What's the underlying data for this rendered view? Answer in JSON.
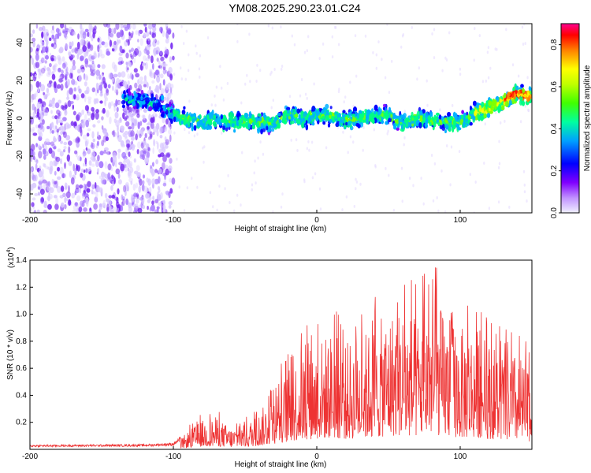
{
  "title": "YM08.2025.290.23.01.C24",
  "chart_data": [
    {
      "type": "heatmap",
      "name": "spectrogram",
      "xlabel": "Height of straight line (km)",
      "ylabel": "Frequency (Hz)",
      "xlim": [
        -200,
        150
      ],
      "ylim": [
        -50,
        50
      ],
      "xticks": [
        "-200",
        "-100",
        "0",
        "100"
      ],
      "yticks": [
        "40",
        "20",
        "0",
        "-20",
        "-40"
      ],
      "colorbar": {
        "label": "Normalized spectral amplitude",
        "range": [
          0,
          0.9
        ],
        "ticks": [
          "0.0",
          "0.2",
          "0.4",
          "0.6",
          "0.8"
        ],
        "colors": [
          "#f0f0ff",
          "#8000ff",
          "#0000ff",
          "#00b0ff",
          "#00ff80",
          "#80ff00",
          "#ffff00",
          "#ff8000",
          "#ff0000",
          "#ff0080"
        ]
      },
      "ridge": {
        "x": [
          -130,
          -120,
          -110,
          -100,
          -90,
          -80,
          -70,
          -60,
          -50,
          -40,
          -30,
          -20,
          -10,
          0,
          10,
          20,
          30,
          40,
          50,
          60,
          70,
          80,
          90,
          100,
          110,
          120,
          130,
          140,
          150
        ],
        "y": [
          10,
          9,
          7,
          2,
          -1,
          -2,
          -1,
          -2,
          -1,
          -2,
          -3,
          2,
          0,
          2,
          1,
          -1,
          0,
          1,
          2,
          -3,
          0,
          -1,
          -2,
          -3,
          3,
          5,
          9,
          13,
          11
        ],
        "spread_hz": 6
      },
      "noise_region_x": [
        -200,
        -100
      ]
    },
    {
      "type": "line",
      "name": "snr",
      "xlabel": "Height of straight line (km)",
      "ylabel": "SNR (10 * v/v)",
      "y_multiplier": "(x10",
      "y_multiplier_exp": "4",
      "y_multiplier_close": ")",
      "xlim": [
        -200,
        150
      ],
      "ylim": [
        0,
        14000
      ],
      "xticks": [
        "-200",
        "-100",
        "0",
        "100"
      ],
      "yticks": [
        "0.2",
        "0.4",
        "0.6",
        "0.8",
        "1.0",
        "1.2",
        "1.4"
      ],
      "series": [
        {
          "name": "SNR",
          "color": "#ee3333",
          "envelope_x": [
            -200,
            -120,
            -100,
            -95,
            -90,
            -80,
            -70,
            -60,
            -50,
            -40,
            -30,
            -20,
            -10,
            0,
            10,
            20,
            30,
            40,
            50,
            60,
            70,
            80,
            90,
            100,
            110,
            120,
            130,
            140,
            150
          ],
          "envelope_y": [
            300,
            350,
            450,
            900,
            1600,
            2600,
            2900,
            1900,
            2200,
            3300,
            5200,
            7000,
            9000,
            9600,
            10600,
            9500,
            10200,
            11000,
            12300,
            12900,
            11600,
            13900,
            12000,
            10800,
            11100,
            9600,
            8700,
            8500,
            7000
          ]
        }
      ]
    }
  ]
}
